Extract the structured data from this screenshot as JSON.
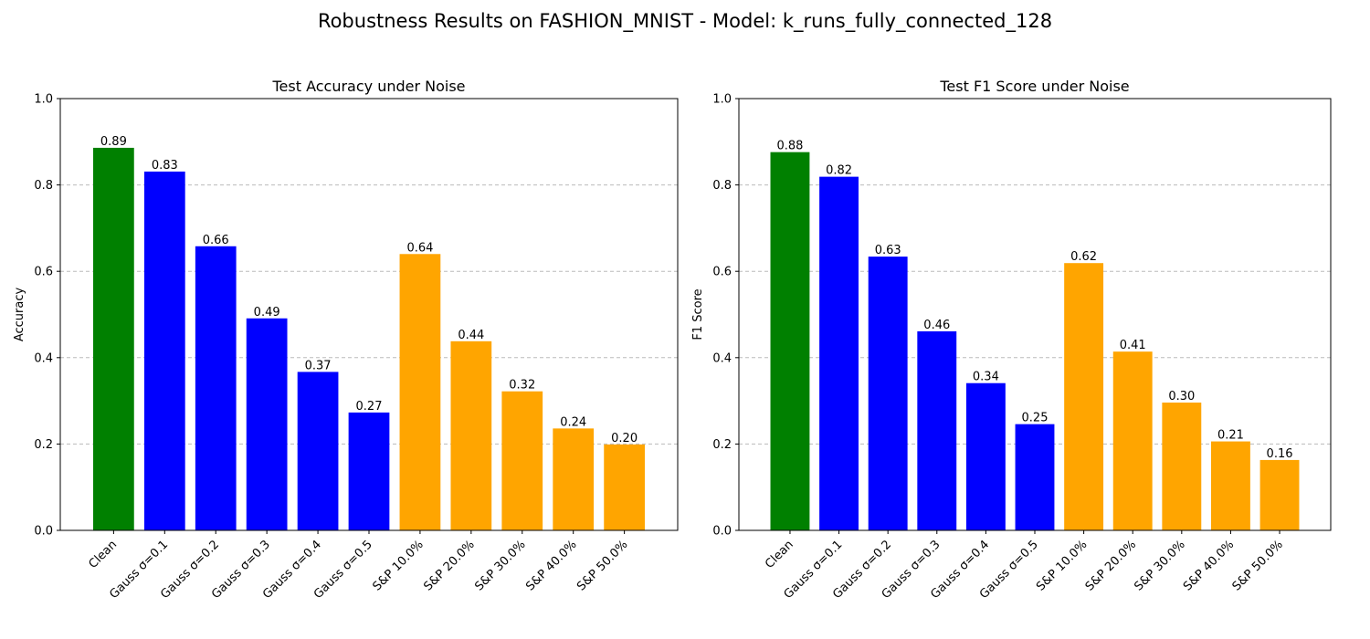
{
  "figure": {
    "title": "Robustness Results on FASHION_MNIST - Model: k_runs_fully_connected_128"
  },
  "colors": {
    "clean": "#008000",
    "gaussian": "#0000ff",
    "salt_pepper": "#ffa500",
    "grid": "#bbbbbb",
    "axis": "#000000"
  },
  "chart_data": [
    {
      "type": "bar",
      "title": "Test Accuracy under Noise",
      "xlabel": "",
      "ylabel": "Accuracy",
      "ylim": [
        0,
        1.0
      ],
      "yticks": [
        "0.0",
        "0.2",
        "0.4",
        "0.6",
        "0.8",
        "1.0"
      ],
      "grid": "y-dashed",
      "categories": [
        "Clean",
        "Gauss σ=0.1",
        "Gauss σ=0.2",
        "Gauss σ=0.3",
        "Gauss σ=0.4",
        "Gauss σ=0.5",
        "S&P 10.0%",
        "S&P 20.0%",
        "S&P 30.0%",
        "S&P 40.0%",
        "S&P 50.0%"
      ],
      "values": [
        0.886,
        0.831,
        0.658,
        0.491,
        0.367,
        0.273,
        0.64,
        0.438,
        0.322,
        0.236,
        0.199
      ],
      "labels": [
        "0.89",
        "0.83",
        "0.66",
        "0.49",
        "0.37",
        "0.27",
        "0.64",
        "0.44",
        "0.32",
        "0.24",
        "0.20"
      ],
      "bar_colors": [
        "clean",
        "gaussian",
        "gaussian",
        "gaussian",
        "gaussian",
        "gaussian",
        "salt_pepper",
        "salt_pepper",
        "salt_pepper",
        "salt_pepper",
        "salt_pepper"
      ]
    },
    {
      "type": "bar",
      "title": "Test F1 Score under Noise",
      "xlabel": "",
      "ylabel": "F1 Score",
      "ylim": [
        0,
        1.0
      ],
      "yticks": [
        "0.0",
        "0.2",
        "0.4",
        "0.6",
        "0.8",
        "1.0"
      ],
      "grid": "y-dashed",
      "categories": [
        "Clean",
        "Gauss σ=0.1",
        "Gauss σ=0.2",
        "Gauss σ=0.3",
        "Gauss σ=0.4",
        "Gauss σ=0.5",
        "S&P 10.0%",
        "S&P 20.0%",
        "S&P 30.0%",
        "S&P 40.0%",
        "S&P 50.0%"
      ],
      "values": [
        0.876,
        0.819,
        0.634,
        0.461,
        0.341,
        0.246,
        0.619,
        0.414,
        0.296,
        0.206,
        0.163
      ],
      "labels": [
        "0.88",
        "0.82",
        "0.63",
        "0.46",
        "0.34",
        "0.25",
        "0.62",
        "0.41",
        "0.30",
        "0.21",
        "0.16"
      ],
      "bar_colors": [
        "clean",
        "gaussian",
        "gaussian",
        "gaussian",
        "gaussian",
        "gaussian",
        "salt_pepper",
        "salt_pepper",
        "salt_pepper",
        "salt_pepper",
        "salt_pepper"
      ]
    }
  ]
}
